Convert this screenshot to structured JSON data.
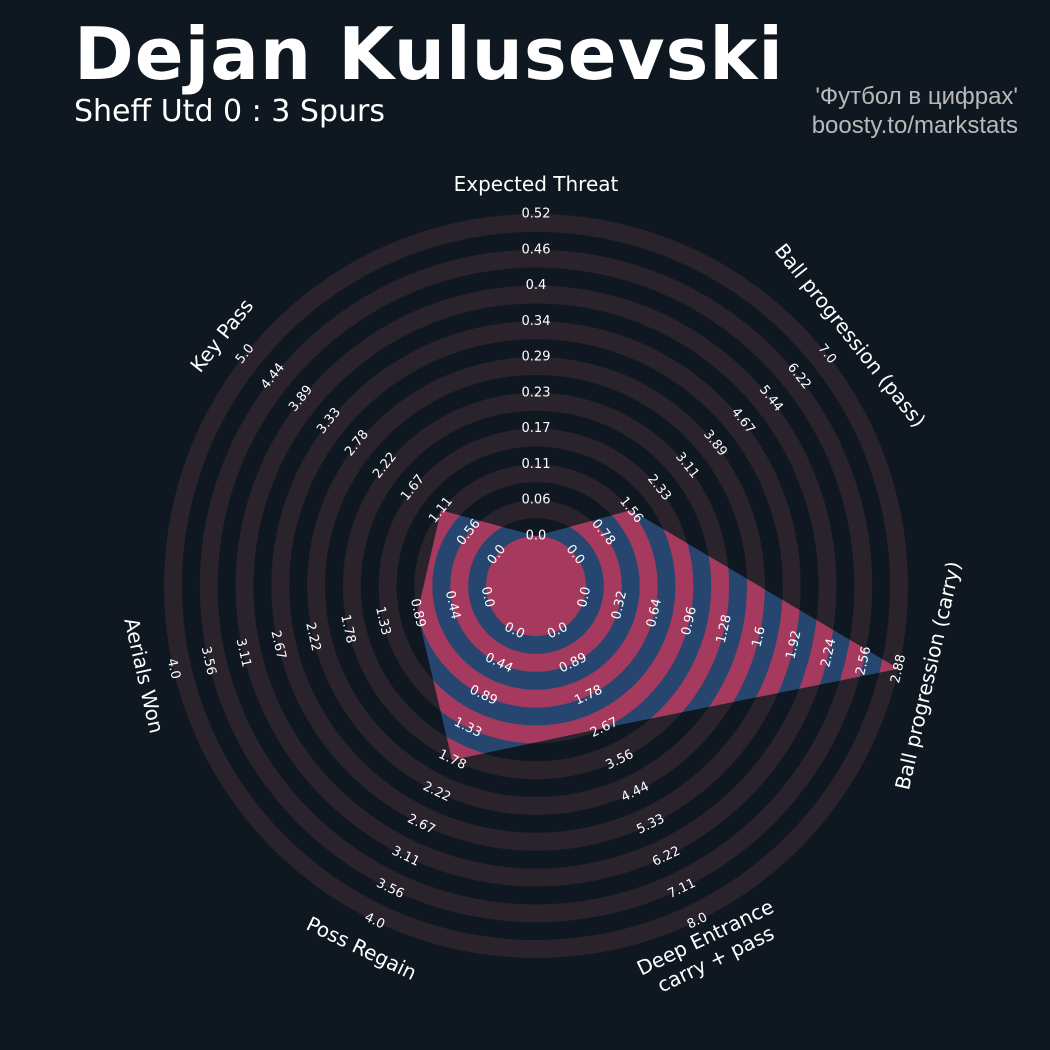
{
  "header": {
    "title": "Dejan Kulusevski",
    "subtitle": "Sheff Utd 0 : 3 Spurs",
    "credit_line1": "'Футбол в цифрах'",
    "credit_line2": "boosty.to/markstats"
  },
  "colors": {
    "background": "#0f1821",
    "ring": "#2a232c",
    "player_fill": "#26466f",
    "player_ring": "#a53a5e",
    "label": "#ffffff",
    "credit": "#b9b9b9"
  },
  "chart_data": {
    "type": "radar",
    "title": "Dejan Kulusevski",
    "subtitle": "Sheff Utd 0 : 3 Spurs",
    "axes": [
      {
        "name": "Expected Threat",
        "min": 0.0,
        "max": 0.52,
        "ticks": [
          "0.0",
          "0.06",
          "0.11",
          "0.17",
          "0.23",
          "0.29",
          "0.34",
          "0.4",
          "0.46",
          "0.52"
        ],
        "value": 0.0
      },
      {
        "name": "Ball progression (pass)",
        "min": 0.0,
        "max": 7.0,
        "ticks": [
          "0.0",
          "0.78",
          "1.56",
          "2.33",
          "3.11",
          "3.89",
          "4.67",
          "5.44",
          "6.22",
          "7.0"
        ],
        "value": 1.56
      },
      {
        "name": "Ball progression (carry)",
        "min": 0.0,
        "max": 2.88,
        "ticks": [
          "0.0",
          "0.32",
          "0.64",
          "0.96",
          "1.28",
          "1.6",
          "1.92",
          "2.24",
          "2.56",
          "2.88"
        ],
        "value": 2.88
      },
      {
        "name": "Deep Entrance\ncarry + pass",
        "min": 0.0,
        "max": 8.0,
        "ticks": [
          "0.0",
          "0.89",
          "1.78",
          "2.67",
          "3.56",
          "4.44",
          "5.33",
          "6.22",
          "7.11",
          "8.0"
        ],
        "value": 2.67
      },
      {
        "name": "Poss Regain",
        "min": 0.0,
        "max": 4.0,
        "ticks": [
          "0.0",
          "0.44",
          "0.89",
          "1.33",
          "1.78",
          "2.22",
          "2.67",
          "3.11",
          "3.56",
          "4.0"
        ],
        "value": 1.78
      },
      {
        "name": "Aerials Won",
        "min": 0.0,
        "max": 4.0,
        "ticks": [
          "0.0",
          "0.44",
          "0.89",
          "1.33",
          "1.78",
          "2.22",
          "2.67",
          "3.11",
          "3.56",
          "4.0"
        ],
        "value": 0.89
      },
      {
        "name": "Key Pass",
        "min": 0.0,
        "max": 5.0,
        "ticks": [
          "0.0",
          "0.56",
          "1.11",
          "1.67",
          "2.22",
          "2.78",
          "3.33",
          "3.89",
          "4.44",
          "5.0"
        ],
        "value": 1.11
      }
    ],
    "rings": 9,
    "grid": true,
    "legend": "none"
  }
}
